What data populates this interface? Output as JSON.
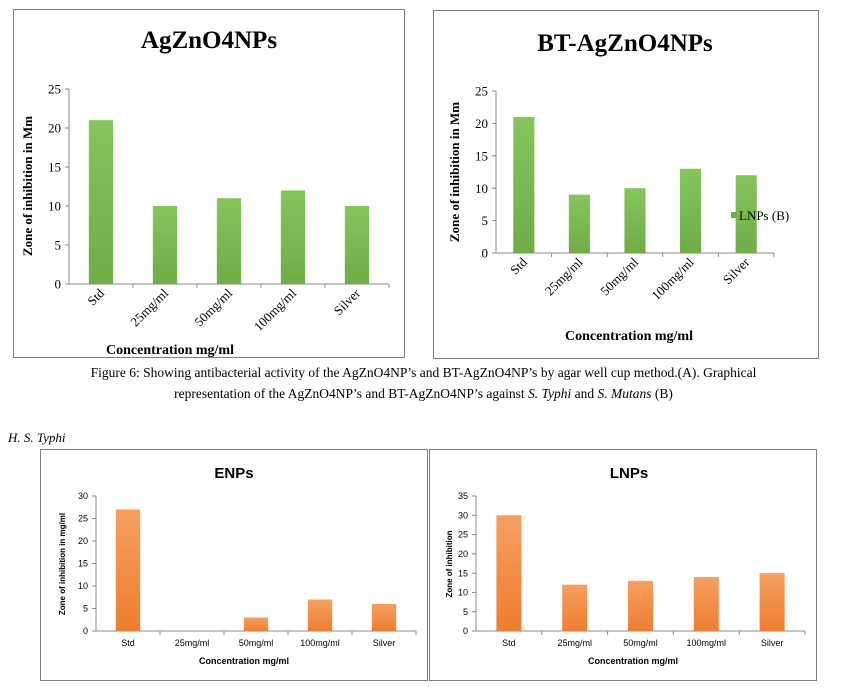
{
  "caption": {
    "line1": "Figure 6: Showing antibacterial activity of the AgZnO4NP’s and BT-AgZnO4NP’s by agar well cup method.(A). Graphical",
    "line2_a": "representation of the AgZnO4NP’s and BT-AgZnO4NP’s against ",
    "line2_b": "S. Typhi",
    "line2_c": " and ",
    "line2_d": "S. Mutans",
    "line2_e": " (B)"
  },
  "section_heading": "H.   S. Typhi",
  "colors": {
    "green": "#70ad47",
    "green_light": "#86c45c",
    "orange": "#ed7d31",
    "orange_light": "#f5a060",
    "axis": "#888888"
  },
  "chart_data": [
    {
      "type": "bar",
      "title": "AgZnO4NPs",
      "xlabel": "Concentration mg/ml",
      "ylabel": "Zone of inhibition in Mm",
      "categories": [
        "Std",
        "25mg/ml",
        "50mg/ml",
        "100mg/ml",
        "Silver"
      ],
      "values": [
        21,
        10,
        11,
        12,
        10
      ],
      "ylim": [
        0,
        25
      ],
      "yticks": [
        0,
        5,
        10,
        15,
        20,
        25
      ],
      "color": "green"
    },
    {
      "type": "bar",
      "title": "BT-AgZnO4NPs",
      "xlabel": "Concentration mg/ml",
      "ylabel": "Zone of inhibition in Mm",
      "categories": [
        "Std",
        "25mg/ml",
        "50mg/ml",
        "100mg/ml",
        "Silver"
      ],
      "values": [
        21,
        9,
        10,
        13,
        12
      ],
      "ylim": [
        0,
        25
      ],
      "yticks": [
        0,
        5,
        10,
        15,
        20,
        25
      ],
      "legend": "LNPs (B)",
      "color": "green"
    },
    {
      "type": "bar",
      "title": "ENPs",
      "xlabel": "Concentration mg/ml",
      "ylabel": "Zone of inhibition in mg/ml",
      "categories": [
        "Std",
        "25mg/ml",
        "50mg/ml",
        "100mg/ml",
        "Silver"
      ],
      "values": [
        27,
        0,
        3,
        7,
        6
      ],
      "ylim": [
        0,
        30
      ],
      "yticks": [
        0,
        5,
        10,
        15,
        20,
        25,
        30
      ],
      "color": "orange"
    },
    {
      "type": "bar",
      "title": "LNPs",
      "xlabel": "Concentration mg/ml",
      "ylabel": "Zone of inhibition",
      "categories": [
        "Std",
        "25mg/ml",
        "50mg/ml",
        "100mg/ml",
        "Silver"
      ],
      "values": [
        30,
        12,
        13,
        14,
        15
      ],
      "ylim": [
        0,
        35
      ],
      "yticks": [
        0,
        5,
        10,
        15,
        20,
        25,
        30,
        35
      ],
      "color": "orange"
    }
  ]
}
